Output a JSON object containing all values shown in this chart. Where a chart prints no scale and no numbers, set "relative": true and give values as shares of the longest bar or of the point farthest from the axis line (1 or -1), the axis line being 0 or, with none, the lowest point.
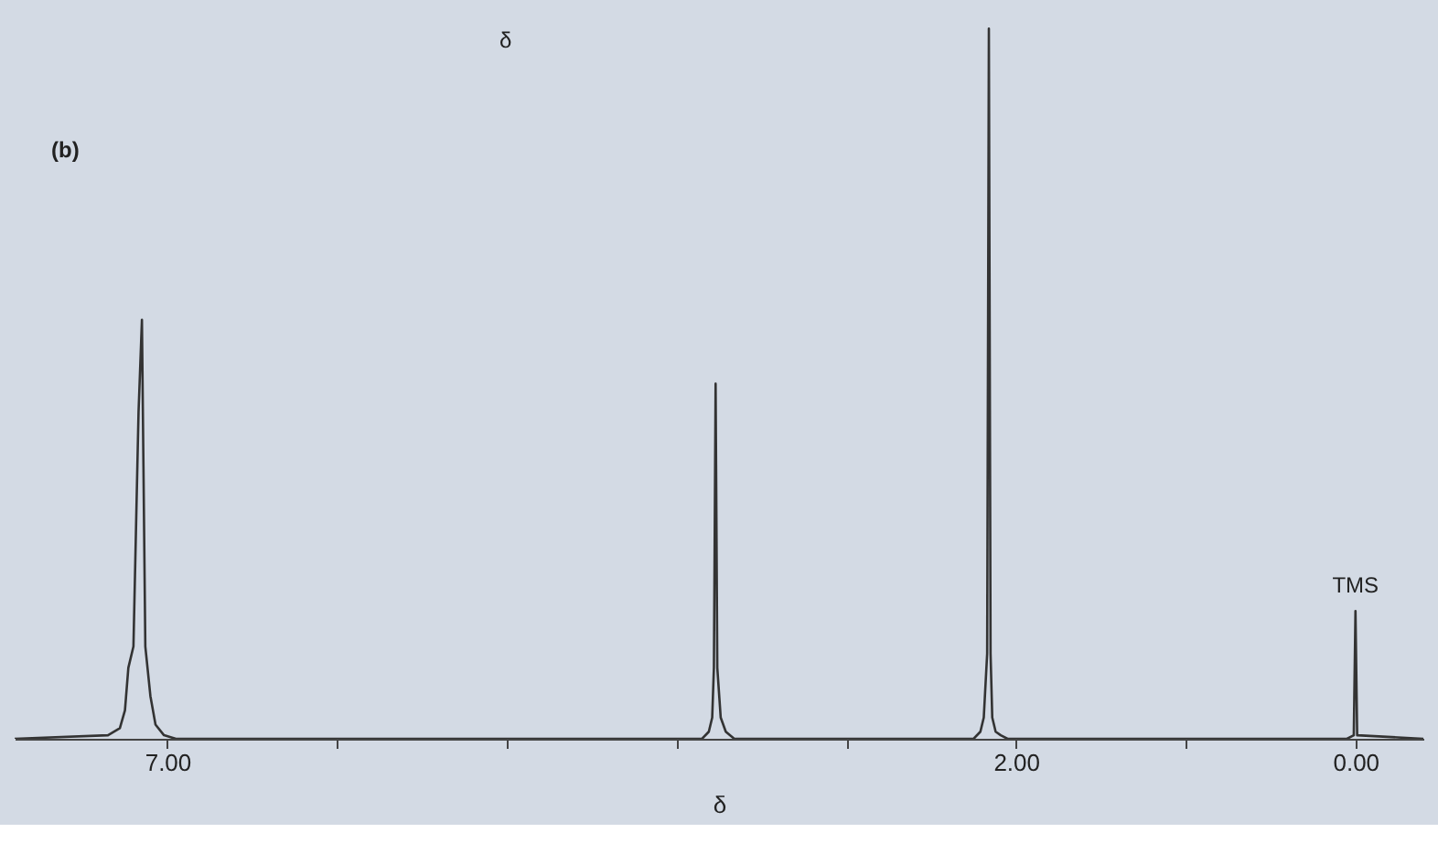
{
  "chart_data": {
    "type": "line",
    "relative": true,
    "xlabel": "δ",
    "x": [
      7.9,
      7.35,
      7.28,
      7.25,
      7.23,
      7.2,
      7.17,
      7.15,
      7.13,
      7.1,
      7.07,
      7.02,
      6.95,
      3.85,
      3.81,
      3.79,
      3.78,
      3.77,
      3.76,
      3.74,
      3.71,
      3.66,
      2.25,
      2.21,
      2.19,
      2.17,
      2.16,
      2.15,
      2.14,
      2.12,
      2.09,
      2.05,
      0.05,
      0.01,
      0.0,
      -0.01,
      -0.4
    ],
    "series": [
      {
        "color": "#333333",
        "values": [
          0,
          0.005,
          0.015,
          0.04,
          0.1,
          0.13,
          0.46,
          0.59,
          0.13,
          0.06,
          0.02,
          0.005,
          0,
          0,
          0.01,
          0.03,
          0.1,
          0.5,
          0.1,
          0.03,
          0.01,
          0,
          0,
          0.01,
          0.03,
          0.12,
          1,
          0.12,
          0.03,
          0.01,
          0.005,
          0,
          0,
          0.005,
          0.18,
          0.005,
          0
        ]
      }
    ],
    "xlim": [
      7.9,
      -0.4
    ],
    "xticks": [
      {
        "value": 7,
        "label": "7.00"
      },
      {
        "value": 6,
        "label": null
      },
      {
        "value": 5,
        "label": null
      },
      {
        "value": 4,
        "label": null
      },
      {
        "value": 3,
        "label": null
      },
      {
        "value": 2,
        "label": "2.00"
      },
      {
        "value": 1,
        "label": null
      },
      {
        "value": 0,
        "label": "0.00"
      }
    ],
    "grid": false,
    "annotations": [
      "δ",
      "(b)",
      {
        "text": "TMS",
        "x": 0,
        "y": 0.18
      }
    ]
  }
}
